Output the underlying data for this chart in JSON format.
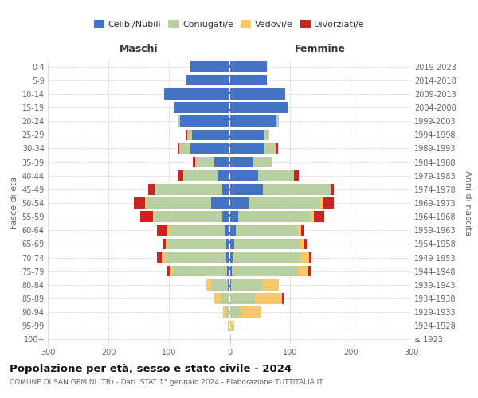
{
  "age_groups": [
    "100+",
    "95-99",
    "90-94",
    "85-89",
    "80-84",
    "75-79",
    "70-74",
    "65-69",
    "60-64",
    "55-59",
    "50-54",
    "45-49",
    "40-44",
    "35-39",
    "30-34",
    "25-29",
    "20-24",
    "15-19",
    "10-14",
    "5-9",
    "0-4"
  ],
  "birth_years": [
    "≤ 1923",
    "1924-1928",
    "1929-1933",
    "1934-1938",
    "1939-1943",
    "1944-1948",
    "1949-1953",
    "1954-1958",
    "1959-1963",
    "1964-1968",
    "1969-1973",
    "1974-1978",
    "1979-1983",
    "1984-1988",
    "1989-1993",
    "1994-1998",
    "1999-2003",
    "2004-2008",
    "2009-2013",
    "2014-2018",
    "2019-2023"
  ],
  "male": {
    "celibi": [
      0,
      0,
      0,
      0,
      2,
      4,
      5,
      5,
      8,
      12,
      30,
      12,
      18,
      25,
      65,
      62,
      82,
      92,
      108,
      72,
      65
    ],
    "coniugati": [
      0,
      2,
      5,
      15,
      28,
      90,
      102,
      98,
      90,
      112,
      108,
      112,
      58,
      32,
      18,
      8,
      2,
      0,
      0,
      0,
      0
    ],
    "vedovi": [
      0,
      0,
      5,
      10,
      8,
      5,
      5,
      2,
      4,
      2,
      2,
      0,
      0,
      0,
      0,
      0,
      0,
      0,
      0,
      0,
      0
    ],
    "divorziati": [
      0,
      0,
      0,
      0,
      0,
      5,
      8,
      5,
      18,
      22,
      18,
      10,
      8,
      4,
      3,
      2,
      0,
      0,
      0,
      0,
      0
    ]
  },
  "female": {
    "celibi": [
      0,
      0,
      0,
      0,
      2,
      4,
      5,
      8,
      10,
      15,
      32,
      55,
      48,
      38,
      58,
      58,
      78,
      98,
      92,
      62,
      62
    ],
    "coniugati": [
      0,
      0,
      18,
      42,
      52,
      108,
      112,
      108,
      102,
      118,
      118,
      112,
      58,
      32,
      18,
      8,
      4,
      0,
      0,
      0,
      0
    ],
    "vedovi": [
      2,
      8,
      35,
      45,
      28,
      18,
      14,
      8,
      6,
      6,
      4,
      0,
      0,
      0,
      0,
      0,
      0,
      0,
      0,
      0,
      0
    ],
    "divorziati": [
      0,
      0,
      0,
      2,
      0,
      4,
      5,
      4,
      5,
      18,
      18,
      5,
      8,
      0,
      4,
      0,
      0,
      0,
      0,
      0,
      0
    ]
  },
  "colors": {
    "celibi": "#4472c4",
    "coniugati": "#b8cfa0",
    "vedovi": "#f5c96a",
    "divorziati": "#cc2222"
  },
  "xlim": 300,
  "title": "Popolazione per età, sesso e stato civile - 2024",
  "subtitle": "COMUNE DI SAN GEMINI (TR) - Dati ISTAT 1° gennaio 2024 - Elaborazione TUTTITALIA.IT",
  "ylabel_left": "Fasce di età",
  "ylabel_right": "Anni di nascita",
  "xlabel_left": "Maschi",
  "xlabel_right": "Femmine",
  "legend_labels": [
    "Celibi/Nubili",
    "Coniugati/e",
    "Vedovi/e",
    "Divorziati/e"
  ],
  "background_color": "#ffffff",
  "grid_color": "#cccccc"
}
